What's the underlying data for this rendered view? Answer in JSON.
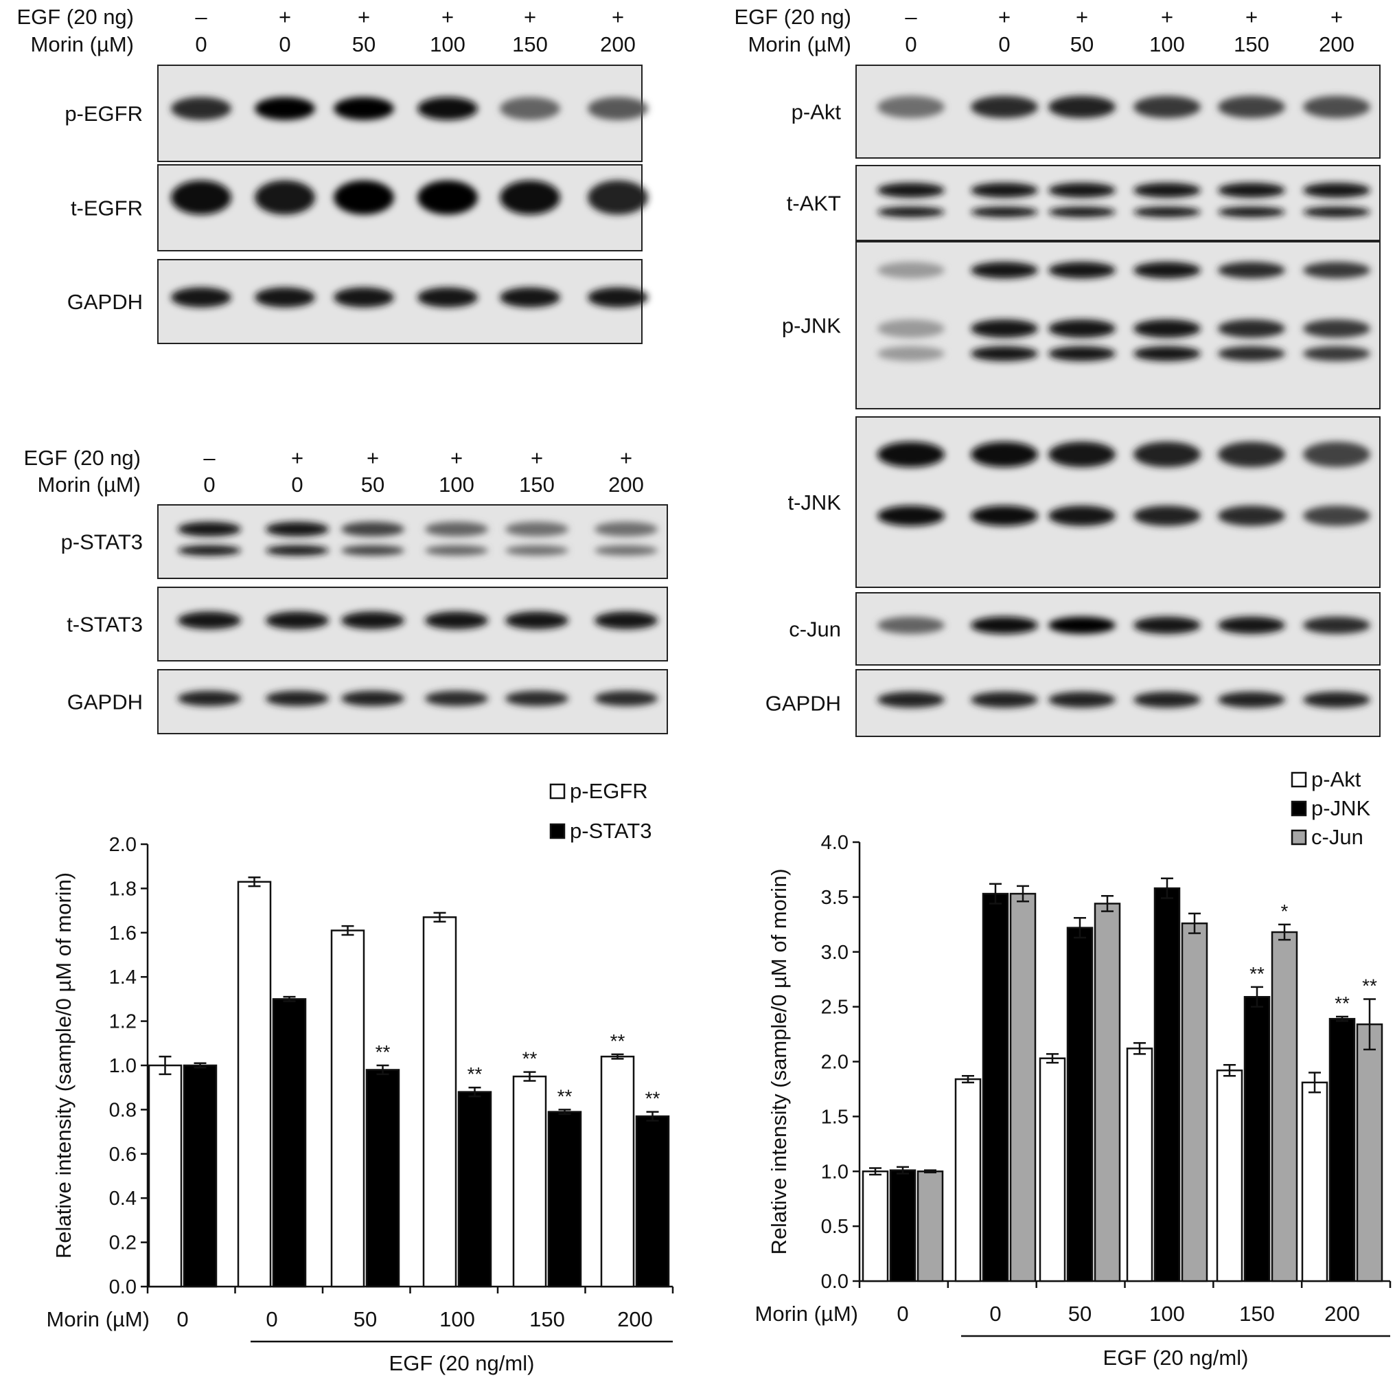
{
  "blots": [
    {
      "egf_label": "EGF (20 ng)",
      "morin_label": "Morin (µM)",
      "egf_signs": [
        "–",
        "+",
        "+",
        "+",
        "+",
        "+"
      ],
      "doses": [
        "0",
        "0",
        "50",
        "100",
        "150",
        "200"
      ],
      "strips": [
        {
          "label": "p-EGFR",
          "intensity": [
            0.8,
            1.0,
            1.0,
            0.95,
            0.55,
            0.6
          ],
          "band": "single"
        },
        {
          "label": "t-EGFR",
          "intensity": [
            0.95,
            0.9,
            1.0,
            1.0,
            0.95,
            0.85
          ],
          "band": "broad"
        },
        {
          "label": "GAPDH",
          "intensity": [
            0.9,
            0.9,
            0.9,
            0.9,
            0.9,
            0.9
          ],
          "band": "single"
        }
      ]
    },
    {
      "egf_label": "EGF (20 ng)",
      "morin_label": "Morin (µM)",
      "egf_signs": [
        "–",
        "+",
        "+",
        "+",
        "+",
        "+"
      ],
      "doses": [
        "0",
        "0",
        "50",
        "100",
        "150",
        "200"
      ],
      "strips": [
        {
          "label": "p-STAT3",
          "intensity": [
            0.9,
            0.9,
            0.7,
            0.55,
            0.5,
            0.5
          ],
          "band": "double"
        },
        {
          "label": "t-STAT3",
          "intensity": [
            0.9,
            0.9,
            0.9,
            0.9,
            0.9,
            0.9
          ],
          "band": "single"
        },
        {
          "label": "GAPDH",
          "intensity": [
            0.85,
            0.85,
            0.85,
            0.8,
            0.8,
            0.8
          ],
          "band": "single"
        }
      ]
    },
    {
      "egf_label": "EGF (20 ng)",
      "morin_label": "Morin (µM)",
      "egf_signs": [
        "–",
        "+",
        "+",
        "+",
        "+",
        "+"
      ],
      "doses": [
        "0",
        "0",
        "50",
        "100",
        "150",
        "200"
      ],
      "strips": [
        {
          "label": "p-Akt",
          "intensity": [
            0.5,
            0.8,
            0.85,
            0.75,
            0.7,
            0.65
          ],
          "band": "single"
        },
        {
          "label": "t-AKT",
          "intensity": [
            0.9,
            0.9,
            0.9,
            0.9,
            0.9,
            0.9
          ],
          "band": "double"
        },
        {
          "label": "p-JNK",
          "intensity": [
            0.3,
            0.9,
            0.9,
            0.9,
            0.8,
            0.75
          ],
          "band": "triple"
        },
        {
          "label": "t-JNK",
          "intensity": [
            0.95,
            0.95,
            0.9,
            0.85,
            0.8,
            0.7
          ],
          "band": "wide-double"
        },
        {
          "label": "c-Jun",
          "intensity": [
            0.55,
            0.95,
            1.0,
            0.9,
            0.9,
            0.8
          ],
          "band": "single"
        },
        {
          "label": "GAPDH",
          "intensity": [
            0.85,
            0.85,
            0.85,
            0.85,
            0.85,
            0.85
          ],
          "band": "single"
        }
      ]
    }
  ],
  "chart_data": [
    {
      "type": "bar",
      "categories": [
        "0",
        "0",
        "50",
        "100",
        "150",
        "200"
      ],
      "x_prefix_label": "Morin (µM)",
      "ylabel": "Relative intensity (sample/0 µM of morin)",
      "ylim": [
        0,
        2.0
      ],
      "yticks": [
        "0.0",
        "0.2",
        "0.4",
        "0.6",
        "0.8",
        "1.0",
        "1.2",
        "1.4",
        "1.6",
        "1.8",
        "2.0"
      ],
      "group_label": "EGF (20 ng/ml)",
      "legend_position": "top-right",
      "series": [
        {
          "name": "p-EGFR",
          "fill": "#ffffff",
          "values": [
            1.0,
            1.83,
            1.61,
            1.67,
            0.95,
            1.04
          ],
          "errors": [
            0.04,
            0.02,
            0.02,
            0.02,
            0.02,
            0.01
          ],
          "marks": [
            "",
            "",
            "",
            "",
            "**",
            "**"
          ]
        },
        {
          "name": "p-STAT3",
          "fill": "#000000",
          "values": [
            1.0,
            1.3,
            0.98,
            0.88,
            0.79,
            0.77
          ],
          "errors": [
            0.01,
            0.01,
            0.02,
            0.02,
            0.01,
            0.02
          ],
          "marks": [
            "",
            "",
            "**",
            "**",
            "**",
            "**"
          ]
        }
      ]
    },
    {
      "type": "bar",
      "categories": [
        "0",
        "0",
        "50",
        "100",
        "150",
        "200"
      ],
      "x_prefix_label": "Morin (µM)",
      "ylabel": "Relative intensity (sample/0 µM of morin)",
      "ylim": [
        0,
        4.0
      ],
      "yticks": [
        "0.0",
        "0.5",
        "1.0",
        "1.5",
        "2.0",
        "2.5",
        "3.0",
        "3.5",
        "4.0"
      ],
      "group_label": "EGF (20 ng/ml)",
      "legend_position": "top-right",
      "series": [
        {
          "name": "p-Akt",
          "fill": "#ffffff",
          "values": [
            1.0,
            1.84,
            2.03,
            2.12,
            1.92,
            1.81
          ],
          "errors": [
            0.03,
            0.03,
            0.04,
            0.05,
            0.05,
            0.09
          ],
          "marks": [
            "",
            "",
            "",
            "",
            "",
            ""
          ]
        },
        {
          "name": "p-JNK",
          "fill": "#000000",
          "values": [
            1.01,
            3.53,
            3.22,
            3.58,
            2.59,
            2.39
          ],
          "errors": [
            0.03,
            0.09,
            0.09,
            0.09,
            0.09,
            0.02
          ],
          "marks": [
            "",
            "",
            "",
            "",
            "**",
            "**"
          ]
        },
        {
          "name": "c-Jun",
          "fill": "#a6a6a6",
          "values": [
            1.0,
            3.53,
            3.44,
            3.26,
            3.18,
            2.34
          ],
          "errors": [
            0.01,
            0.07,
            0.07,
            0.09,
            0.07,
            0.23
          ],
          "marks": [
            "",
            "",
            "",
            "",
            "*",
            "**"
          ]
        }
      ]
    }
  ]
}
